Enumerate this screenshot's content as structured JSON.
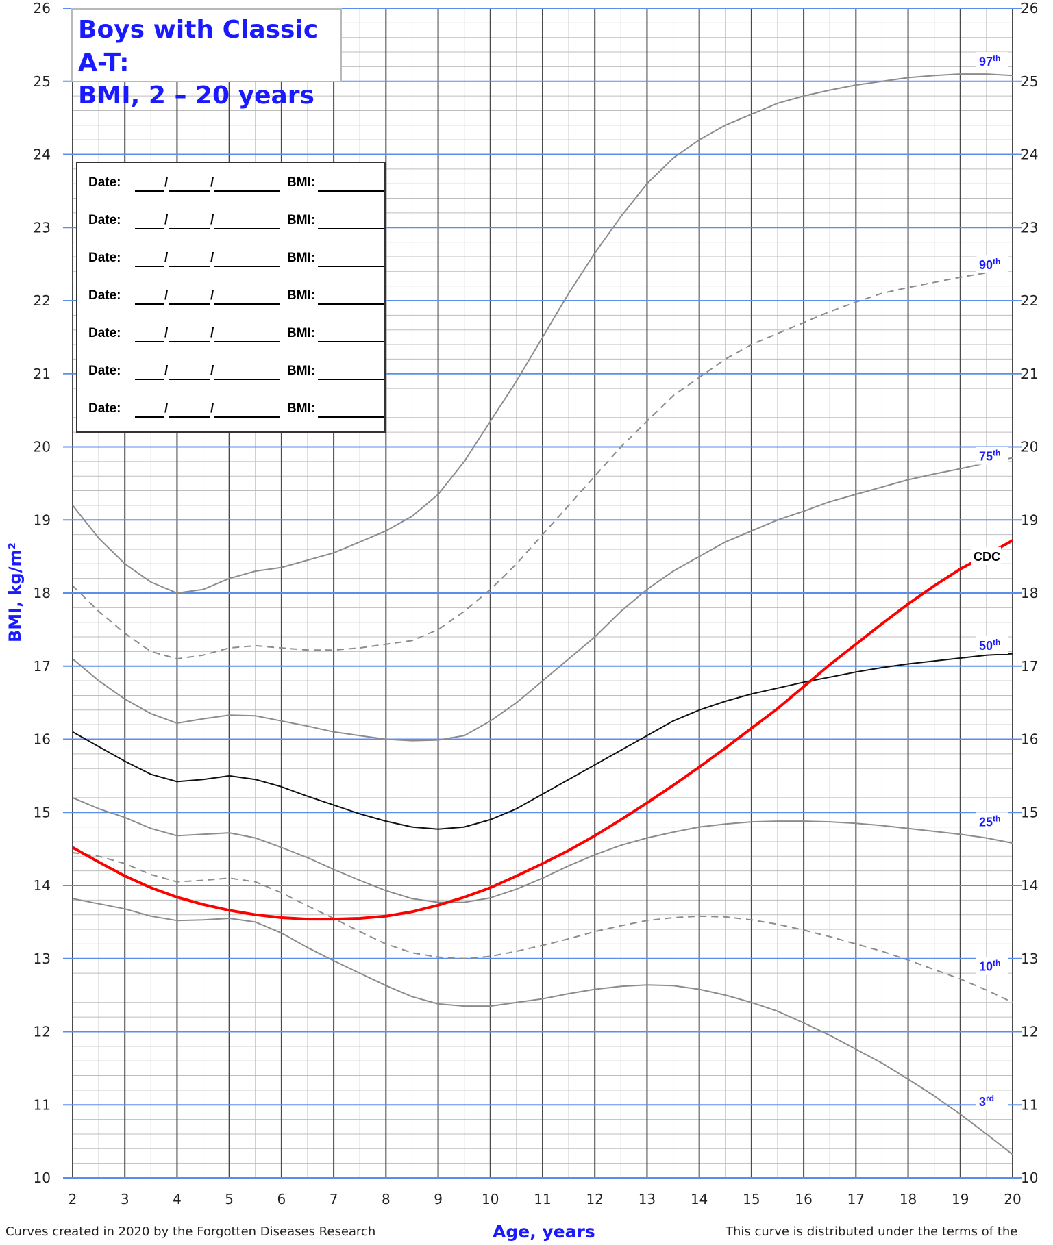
{
  "title": {
    "line1": "Boys with Classic A-T:",
    "line2": "BMI, 2 – 20 years"
  },
  "entry_form": {
    "rows": [
      {
        "date_label": "Date:",
        "bmi_label": "BMI:"
      },
      {
        "date_label": "Date:",
        "bmi_label": "BMI:"
      },
      {
        "date_label": "Date:",
        "bmi_label": "BMI:"
      },
      {
        "date_label": "Date:",
        "bmi_label": "BMI:"
      },
      {
        "date_label": "Date:",
        "bmi_label": "BMI:"
      },
      {
        "date_label": "Date:",
        "bmi_label": "BMI:"
      },
      {
        "date_label": "Date:",
        "bmi_label": "BMI:"
      }
    ],
    "separator": "/"
  },
  "footer": {
    "left": "Curves created in 2020 by the Forgotten Diseases Research",
    "right": "This curve is distributed under the terms of the"
  },
  "colors": {
    "title": "#1a1aff",
    "label": "#1a1aff",
    "major_vgrid": "#4a4a4a",
    "minor_grid": "#bdbdbd",
    "major_hgrid": "#5b8def",
    "percentile_line": "#8c8c8c",
    "median_line": "#111111",
    "cdc_line": "#ff0000"
  },
  "chart_data": {
    "type": "line",
    "xlabel": "Age, years",
    "ylabel": "BMI, kg/m²",
    "xlim": [
      2,
      20
    ],
    "ylim": [
      10,
      26
    ],
    "x_ticks": [
      "2",
      "3",
      "4",
      "5",
      "6",
      "7",
      "8",
      "9",
      "10",
      "11",
      "12",
      "13",
      "14",
      "15",
      "16",
      "17",
      "18",
      "19",
      "20"
    ],
    "y_ticks": [
      "10",
      "11",
      "12",
      "13",
      "14",
      "15",
      "16",
      "17",
      "18",
      "19",
      "20",
      "21",
      "22",
      "23",
      "24",
      "25",
      "26"
    ],
    "grid": true,
    "series": [
      {
        "name": "97",
        "suffix": "th",
        "style": "solid",
        "color": "#8c8c8c",
        "x": [
          2,
          2.5,
          3,
          3.5,
          4,
          4.5,
          5,
          5.5,
          6,
          6.5,
          7,
          7.5,
          8,
          8.5,
          9,
          9.5,
          10,
          10.5,
          11,
          11.5,
          12,
          12.5,
          13,
          13.5,
          14,
          14.5,
          15,
          15.5,
          16,
          16.5,
          17,
          17.5,
          18,
          18.5,
          19,
          19.5,
          20
        ],
        "y": [
          19.2,
          18.75,
          18.4,
          18.15,
          18.0,
          18.05,
          18.2,
          18.3,
          18.35,
          18.45,
          18.55,
          18.7,
          18.85,
          19.05,
          19.35,
          19.8,
          20.35,
          20.9,
          21.5,
          22.1,
          22.65,
          23.15,
          23.6,
          23.95,
          24.2,
          24.4,
          24.55,
          24.7,
          24.8,
          24.88,
          24.95,
          25.0,
          25.05,
          25.08,
          25.1,
          25.1,
          25.08
        ]
      },
      {
        "name": "90",
        "suffix": "th",
        "style": "dashed",
        "color": "#8c8c8c",
        "x": [
          2,
          2.5,
          3,
          3.5,
          4,
          4.5,
          5,
          5.5,
          6,
          6.5,
          7,
          7.5,
          8,
          8.5,
          9,
          9.5,
          10,
          10.5,
          11,
          11.5,
          12,
          12.5,
          13,
          13.5,
          14,
          14.5,
          15,
          15.5,
          16,
          16.5,
          17,
          17.5,
          18,
          18.5,
          19,
          19.5,
          20
        ],
        "y": [
          18.1,
          17.75,
          17.45,
          17.2,
          17.1,
          17.15,
          17.25,
          17.28,
          17.25,
          17.22,
          17.22,
          17.25,
          17.3,
          17.35,
          17.5,
          17.75,
          18.05,
          18.4,
          18.8,
          19.2,
          19.6,
          20.0,
          20.35,
          20.7,
          20.95,
          21.2,
          21.4,
          21.55,
          21.7,
          21.85,
          21.98,
          22.1,
          22.18,
          22.25,
          22.32,
          22.38,
          22.42
        ]
      },
      {
        "name": "75",
        "suffix": "th",
        "style": "solid",
        "color": "#8c8c8c",
        "x": [
          2,
          2.5,
          3,
          3.5,
          4,
          4.5,
          5,
          5.5,
          6,
          6.5,
          7,
          7.5,
          8,
          8.5,
          9,
          9.5,
          10,
          10.5,
          11,
          11.5,
          12,
          12.5,
          13,
          13.5,
          14,
          14.5,
          15,
          15.5,
          16,
          16.5,
          17,
          17.5,
          18,
          18.5,
          19,
          19.5,
          20
        ],
        "y": [
          17.1,
          16.8,
          16.55,
          16.35,
          16.22,
          16.28,
          16.33,
          16.32,
          16.25,
          16.18,
          16.1,
          16.05,
          16.0,
          15.98,
          15.99,
          16.05,
          16.25,
          16.5,
          16.8,
          17.1,
          17.4,
          17.75,
          18.05,
          18.3,
          18.5,
          18.7,
          18.85,
          19.0,
          19.12,
          19.25,
          19.35,
          19.45,
          19.55,
          19.63,
          19.7,
          19.78,
          19.85
        ]
      },
      {
        "name": "50",
        "suffix": "th",
        "style": "solid",
        "color": "#111111",
        "x": [
          2,
          2.5,
          3,
          3.5,
          4,
          4.5,
          5,
          5.5,
          6,
          6.5,
          7,
          7.5,
          8,
          8.5,
          9,
          9.5,
          10,
          10.5,
          11,
          11.5,
          12,
          12.5,
          13,
          13.5,
          14,
          14.5,
          15,
          15.5,
          16,
          16.5,
          17,
          17.5,
          18,
          18.5,
          19,
          19.5,
          20
        ],
        "y": [
          16.1,
          15.9,
          15.7,
          15.52,
          15.42,
          15.45,
          15.5,
          15.45,
          15.35,
          15.22,
          15.1,
          14.98,
          14.88,
          14.8,
          14.77,
          14.8,
          14.9,
          15.05,
          15.25,
          15.45,
          15.65,
          15.85,
          16.05,
          16.25,
          16.4,
          16.52,
          16.62,
          16.7,
          16.78,
          16.85,
          16.92,
          16.98,
          17.03,
          17.07,
          17.11,
          17.15,
          17.17
        ]
      },
      {
        "name": "25",
        "suffix": "th",
        "style": "solid",
        "color": "#8c8c8c",
        "x": [
          2,
          2.5,
          3,
          3.5,
          4,
          4.5,
          5,
          5.5,
          6,
          6.5,
          7,
          7.5,
          8,
          8.5,
          9,
          9.5,
          10,
          10.5,
          11,
          11.5,
          12,
          12.5,
          13,
          13.5,
          14,
          14.5,
          15,
          15.5,
          16,
          16.5,
          17,
          17.5,
          18,
          18.5,
          19,
          19.5,
          20
        ],
        "y": [
          15.2,
          15.05,
          14.93,
          14.78,
          14.68,
          14.7,
          14.72,
          14.65,
          14.52,
          14.38,
          14.22,
          14.07,
          13.93,
          13.82,
          13.77,
          13.77,
          13.83,
          13.95,
          14.1,
          14.27,
          14.42,
          14.55,
          14.65,
          14.73,
          14.8,
          14.84,
          14.87,
          14.88,
          14.88,
          14.87,
          14.85,
          14.82,
          14.78,
          14.74,
          14.7,
          14.65,
          14.58
        ]
      },
      {
        "name": "10",
        "suffix": "th",
        "style": "dashed",
        "color": "#8c8c8c",
        "x": [
          2,
          2.5,
          3,
          3.5,
          4,
          4.5,
          5,
          5.5,
          6,
          6.5,
          7,
          7.5,
          8,
          8.5,
          9,
          9.5,
          10,
          10.5,
          11,
          11.5,
          12,
          12.5,
          13,
          13.5,
          14,
          14.5,
          15,
          15.5,
          16,
          16.5,
          17,
          17.5,
          18,
          18.5,
          19,
          19.5,
          20
        ],
        "y": [
          14.45,
          14.4,
          14.3,
          14.15,
          14.05,
          14.07,
          14.1,
          14.05,
          13.9,
          13.72,
          13.55,
          13.37,
          13.2,
          13.08,
          13.02,
          13.0,
          13.03,
          13.1,
          13.18,
          13.27,
          13.37,
          13.45,
          13.52,
          13.56,
          13.58,
          13.57,
          13.53,
          13.47,
          13.39,
          13.3,
          13.2,
          13.1,
          12.98,
          12.85,
          12.72,
          12.57,
          12.4
        ]
      },
      {
        "name": "3",
        "suffix": "rd",
        "style": "solid",
        "color": "#8c8c8c",
        "x": [
          2,
          2.5,
          3,
          3.5,
          4,
          4.5,
          5,
          5.5,
          6,
          6.5,
          7,
          7.5,
          8,
          8.5,
          9,
          9.5,
          10,
          10.5,
          11,
          11.5,
          12,
          12.5,
          13,
          13.5,
          14,
          14.5,
          15,
          15.5,
          16,
          16.5,
          17,
          17.5,
          18,
          18.5,
          19,
          19.5,
          20
        ],
        "y": [
          13.82,
          13.75,
          13.68,
          13.58,
          13.52,
          13.53,
          13.55,
          13.5,
          13.35,
          13.15,
          12.97,
          12.8,
          12.63,
          12.48,
          12.38,
          12.35,
          12.35,
          12.4,
          12.45,
          12.52,
          12.58,
          12.62,
          12.64,
          12.63,
          12.58,
          12.5,
          12.4,
          12.28,
          12.12,
          11.95,
          11.76,
          11.57,
          11.35,
          11.12,
          10.87,
          10.6,
          10.32
        ]
      },
      {
        "name": "CDC",
        "suffix": "",
        "style": "solid",
        "color": "#ff0000",
        "x": [
          2,
          2.5,
          3,
          3.5,
          4,
          4.5,
          5,
          5.5,
          6,
          6.5,
          7,
          7.5,
          8,
          8.5,
          9,
          9.5,
          10,
          10.5,
          11,
          11.5,
          12,
          12.5,
          13,
          13.5,
          14,
          14.5,
          15,
          15.5,
          16,
          16.5,
          17,
          17.5,
          18,
          18.5,
          19,
          19.5,
          20
        ],
        "y": [
          14.52,
          14.32,
          14.13,
          13.97,
          13.84,
          13.74,
          13.66,
          13.6,
          13.56,
          13.54,
          13.54,
          13.55,
          13.58,
          13.64,
          13.73,
          13.84,
          13.97,
          14.13,
          14.3,
          14.48,
          14.68,
          14.9,
          15.13,
          15.37,
          15.62,
          15.88,
          16.15,
          16.42,
          16.72,
          17.02,
          17.3,
          17.58,
          17.85,
          18.1,
          18.33,
          18.52,
          18.72
        ]
      }
    ]
  }
}
